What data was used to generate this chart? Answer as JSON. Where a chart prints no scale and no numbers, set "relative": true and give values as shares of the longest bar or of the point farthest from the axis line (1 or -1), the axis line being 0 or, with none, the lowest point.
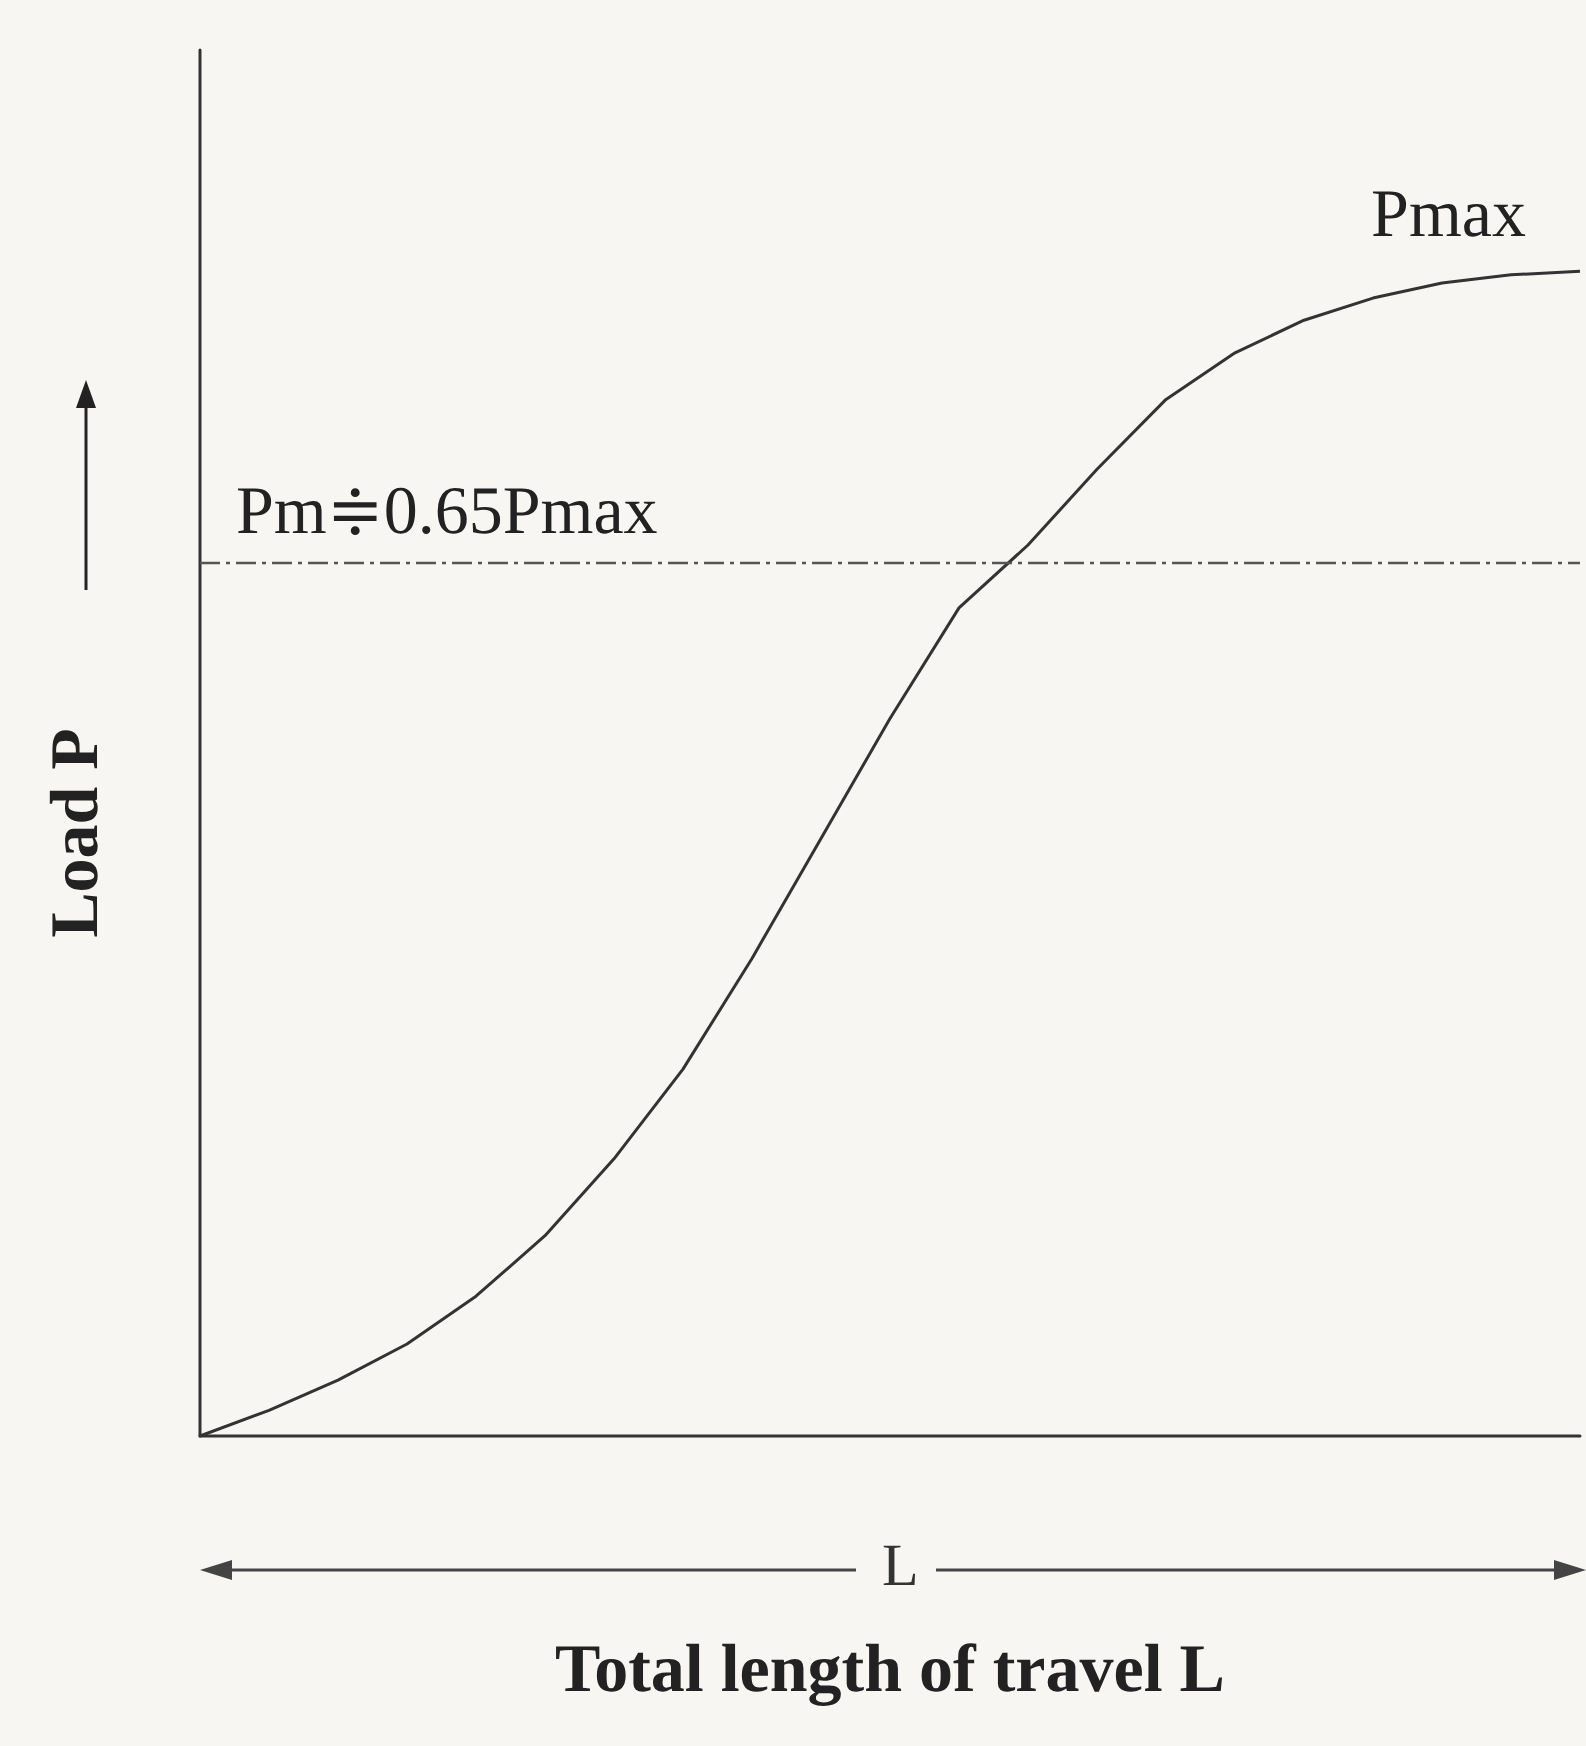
{
  "chart_data": {
    "type": "line",
    "relative": true,
    "xlabel": "Total length of travel L",
    "ylabel": "Load P",
    "categories": [
      null,
      null,
      null,
      null,
      null,
      null,
      null,
      null,
      null,
      null,
      null,
      null,
      null,
      null,
      null,
      null,
      null,
      null,
      null,
      null,
      null
    ],
    "series": [
      {
        "color": "#333333",
        "values": [
          0,
          0.022,
          0.048,
          0.079,
          0.12,
          0.172,
          0.238,
          0.315,
          0.41,
          0.513,
          0.616,
          0.711,
          0.765,
          0.83,
          0.89,
          0.93,
          0.958,
          0.977,
          0.99,
          0.997,
          1
        ]
      }
    ],
    "ref_lines": [
      {
        "axis": "y",
        "value": 0.75,
        "label": "Pm≑0.65Pmax",
        "color": "#555555",
        "line_style": "dashdot"
      }
    ],
    "annotations": [
      {
        "text": "Pmax",
        "y": 1
      },
      "L"
    ],
    "marker": "none",
    "line_style": "solid"
  }
}
